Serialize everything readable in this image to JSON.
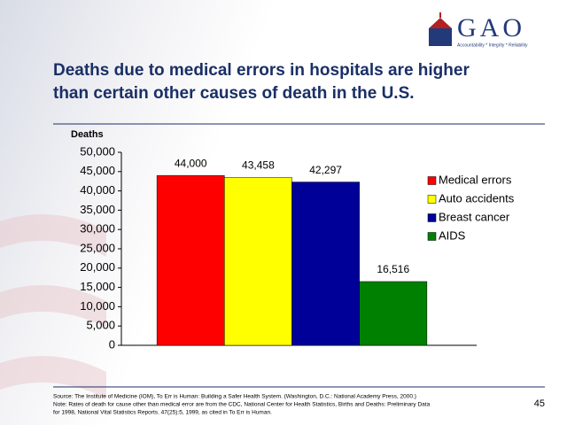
{
  "logo": {
    "name": "GAO",
    "tagline": "Accountability * Integrity * Reliability"
  },
  "chart_data": {
    "type": "bar",
    "title": [
      "Deaths due to medical errors in hospitals are higher",
      "than certain other causes of death in the U.S."
    ],
    "ylabel": "Deaths",
    "categories": [
      null
    ],
    "series": [
      {
        "name": "Medical errors",
        "color": "#ff0000",
        "values": [
          44000
        ],
        "value_labels": [
          "44,000"
        ]
      },
      {
        "name": "Auto accidents",
        "color": "#ffff00",
        "values": [
          43458
        ],
        "value_labels": [
          "43,458"
        ]
      },
      {
        "name": "Breast cancer",
        "color": "#000099",
        "values": [
          42297
        ],
        "value_labels": [
          "42,297"
        ]
      },
      {
        "name": "AIDS",
        "color": "#008000",
        "values": [
          16516
        ],
        "value_labels": [
          "16,516"
        ]
      }
    ],
    "ylim": [
      0,
      50000
    ],
    "yticks": [
      0,
      {
        "value": 5000,
        "label": "5,000"
      },
      {
        "value": 10000,
        "label": "10,000"
      },
      {
        "value": 15000,
        "label": "15,000"
      },
      {
        "value": 20000,
        "label": "20,000"
      },
      {
        "value": 25000,
        "label": "25,000"
      },
      {
        "value": 30000,
        "label": "30,000"
      },
      {
        "value": 35000,
        "label": "35,000"
      },
      {
        "value": 40000,
        "label": "40,000"
      },
      {
        "value": 45000,
        "label": "45,000"
      },
      {
        "value": 50000,
        "label": "50,000"
      }
    ],
    "legend": "right"
  },
  "footer": {
    "lines": [
      "Source: The Institute of Medicine (IOM), To Err is Human: Building a Safer Health System. (Washington, D.C.: National Academy Press, 2000.)",
      "Note: Rates of death for cause other than medical error are from the CDC, National Center for Health Statistics, Births and Deaths: Preliminary Data",
      "for 1998, National Vital Statistics Reports. 47(25):5, 1999, as cited in To Err is Human."
    ],
    "page": "45"
  }
}
